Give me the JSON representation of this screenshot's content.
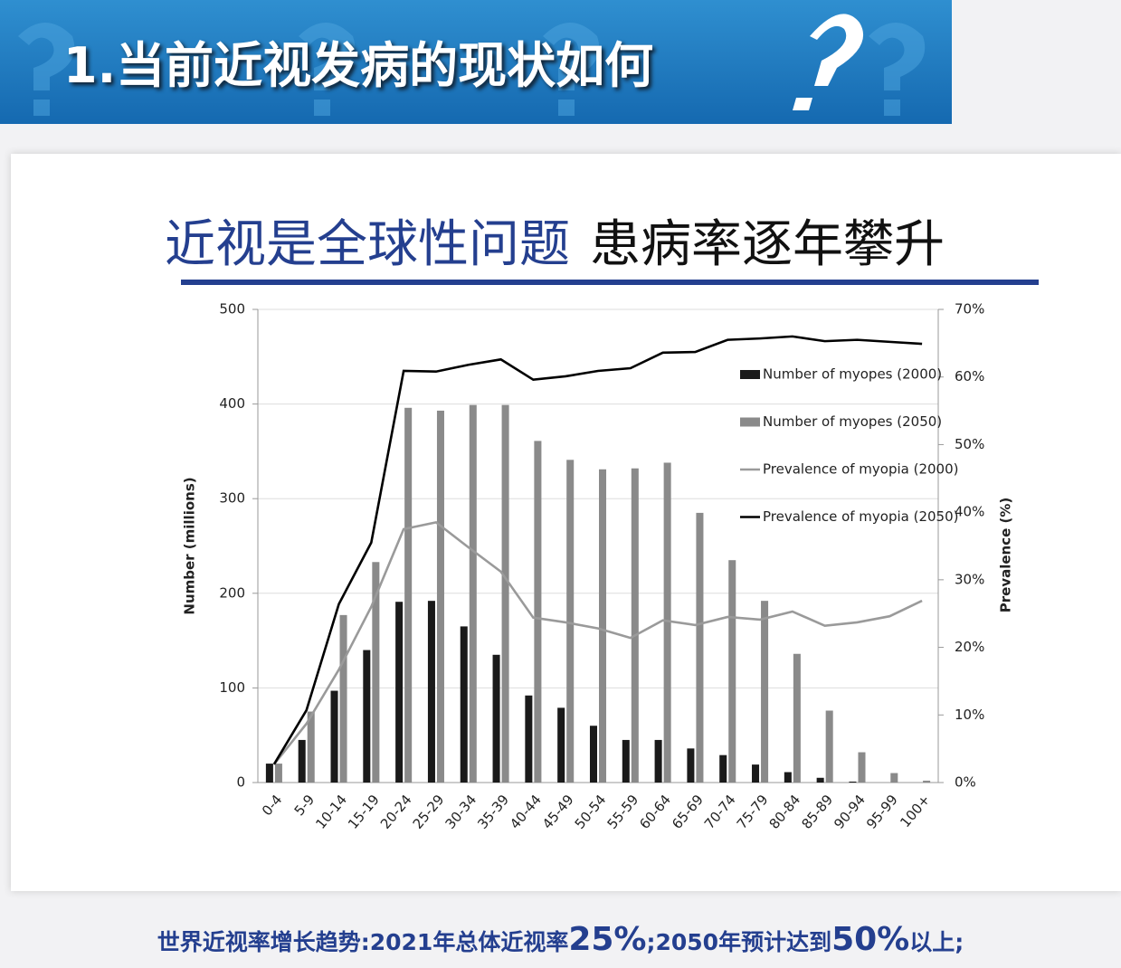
{
  "header": {
    "title": "1.当前近视发病的现状如何"
  },
  "subtitle": {
    "blue": "近视是全球性问题",
    "black": "患病率逐年攀升"
  },
  "chart_data": {
    "type": "bar",
    "y_label": "Number (millions)",
    "y2_label": "Prevalence (%)",
    "categories": [
      "0-4",
      "5-9",
      "10-14",
      "15-19",
      "20-24",
      "25-29",
      "30-34",
      "35-39",
      "40-44",
      "45-49",
      "50-54",
      "55-59",
      "60-64",
      "65-69",
      "70-74",
      "75-79",
      "80-84",
      "85-89",
      "90-94",
      "95-99",
      "100+"
    ],
    "series": [
      {
        "name": "Number of myopes (2000)",
        "type": "bar",
        "color": "#1a1a1a",
        "values": [
          20,
          45,
          97,
          140,
          191,
          192,
          165,
          135,
          92,
          79,
          60,
          45,
          45,
          36,
          29,
          19,
          11,
          5,
          1,
          0,
          0
        ]
      },
      {
        "name": "Number of myopes (2050)",
        "type": "bar",
        "color": "#8a8a8a",
        "values": [
          20,
          75,
          177,
          233,
          396,
          393,
          399,
          399,
          361,
          341,
          331,
          332,
          338,
          285,
          235,
          192,
          136,
          76,
          32,
          10,
          2
        ]
      },
      {
        "name": "Prevalence of myopia (2000)",
        "type": "line",
        "axis": "y2",
        "color": "#9a9a9a",
        "values": [
          2.7,
          8.7,
          16.7,
          26,
          37.5,
          38.5,
          34.8,
          31.2,
          24.4,
          23.7,
          22.8,
          21.4,
          24,
          23.3,
          24.5,
          24.1,
          25.3,
          23.2,
          23.7,
          24.6,
          26.9
        ]
      },
      {
        "name": "Prevalence of myopia (2050)",
        "type": "line",
        "axis": "y2",
        "color": "#000000",
        "values": [
          2.7,
          10.7,
          26.4,
          35.5,
          60.9,
          60.8,
          61.8,
          62.6,
          59.6,
          60.1,
          60.9,
          61.3,
          63.6,
          63.7,
          65.5,
          65.7,
          66,
          65.3,
          65.5,
          65.2,
          64.9
        ]
      }
    ],
    "ylim": [
      0,
      500
    ],
    "yticks": [
      0,
      100,
      200,
      300,
      400,
      500
    ],
    "y2lim": [
      0,
      70
    ],
    "y2ticks": [
      {
        "value": 0,
        "label": "0%"
      },
      {
        "value": 10,
        "label": "10%"
      },
      {
        "value": 20,
        "label": "20%"
      },
      {
        "value": 30,
        "label": "30%"
      },
      {
        "value": 40,
        "label": "40%"
      },
      {
        "value": 50,
        "label": "50%"
      },
      {
        "value": 60,
        "label": "60%"
      },
      {
        "value": 70,
        "label": "70%"
      }
    ],
    "grid": true,
    "legend": "upper right"
  },
  "footer": {
    "parts": [
      "世界近视率增长趋势:2021年总体近视率",
      "25%",
      ";2050年预计达到",
      "50%",
      "以上;"
    ]
  }
}
